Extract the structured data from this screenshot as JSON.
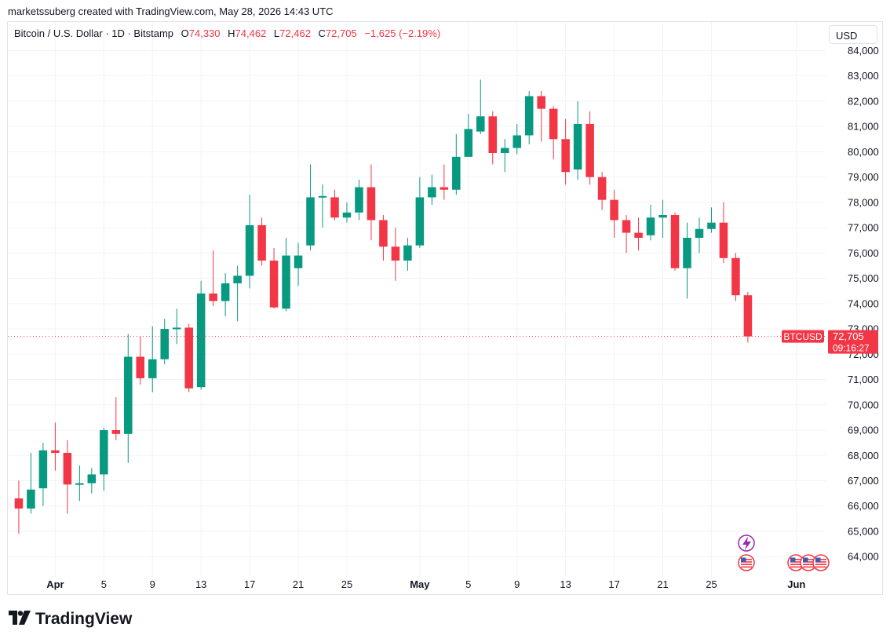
{
  "attribution": "marketssuberg created with TradingView.com, May 28, 2026 14:43 UTC",
  "legend": {
    "symbol": "Bitcoin / U.S. Dollar · 1D · Bitstamp",
    "open_label": "O",
    "open": "74,330",
    "high_label": "H",
    "high": "74,462",
    "low_label": "L",
    "low": "72,462",
    "close_label": "C",
    "close": "72,705",
    "change": "−1,625 (−2.19%)"
  },
  "currency_button": "USD",
  "price_tag": {
    "label": "BTCUSD",
    "price": "72,705",
    "countdown": "09:16:27"
  },
  "logo": {
    "text": "TradingView"
  },
  "colors": {
    "up": "#089981",
    "down": "#f23645",
    "grid": "#f0f3fa"
  },
  "event_icons": [
    "lightning-event-icon",
    "us-flag-event-icon",
    "us-flag-event-icon",
    "us-flag-event-icon",
    "us-flag-event-icon"
  ],
  "chart_data": {
    "type": "candlestick",
    "title": "Bitcoin / U.S. Dollar · 1D · Bitstamp",
    "y_ticks": [
      64000,
      65000,
      66000,
      67000,
      68000,
      69000,
      70000,
      71000,
      72000,
      73000,
      74000,
      75000,
      76000,
      77000,
      78000,
      79000,
      80000,
      81000,
      82000,
      83000,
      84000
    ],
    "y_tick_labels": [
      "64,000",
      "65,000",
      "66,000",
      "67,000",
      "68,000",
      "69,000",
      "70,000",
      "71,000",
      "72,000",
      "73,000",
      "74,000",
      "75,000",
      "76,000",
      "77,000",
      "78,000",
      "79,000",
      "80,000",
      "81,000",
      "82,000",
      "83,000",
      "84,000"
    ],
    "ylim": [
      63200,
      84200
    ],
    "x_tick_labels": [
      {
        "day": 1,
        "label": "Apr"
      },
      {
        "day": 5,
        "label": "5"
      },
      {
        "day": 9,
        "label": "9"
      },
      {
        "day": 13,
        "label": "13"
      },
      {
        "day": 17,
        "label": "17"
      },
      {
        "day": 21,
        "label": "21"
      },
      {
        "day": 25,
        "label": "25"
      },
      {
        "day": 31,
        "label": "May"
      },
      {
        "day": 35,
        "label": "5"
      },
      {
        "day": 39,
        "label": "9"
      },
      {
        "day": 43,
        "label": "13"
      },
      {
        "day": 47,
        "label": "17"
      },
      {
        "day": 51,
        "label": "21"
      },
      {
        "day": 55,
        "label": "25"
      },
      {
        "day": 62,
        "label": "Jun"
      }
    ],
    "xlim": [
      -2.9,
      64.4
    ],
    "last_price": 72705,
    "candles": [
      {
        "day": -2,
        "o": 66300,
        "h": 67000,
        "l": 64900,
        "c": 65900
      },
      {
        "day": -1,
        "o": 65900,
        "h": 68100,
        "l": 65700,
        "c": 66650
      },
      {
        "day": 0,
        "o": 66700,
        "h": 68500,
        "l": 66000,
        "c": 68200
      },
      {
        "day": 1,
        "o": 68200,
        "h": 69300,
        "l": 67400,
        "c": 68100
      },
      {
        "day": 2,
        "o": 68100,
        "h": 68600,
        "l": 65700,
        "c": 66850
      },
      {
        "day": 3,
        "o": 66850,
        "h": 67600,
        "l": 66200,
        "c": 66900
      },
      {
        "day": 4,
        "o": 66900,
        "h": 67500,
        "l": 66500,
        "c": 67250
      },
      {
        "day": 5,
        "o": 67250,
        "h": 69100,
        "l": 66600,
        "c": 69000
      },
      {
        "day": 6,
        "o": 69000,
        "h": 70300,
        "l": 68600,
        "c": 68850
      },
      {
        "day": 7,
        "o": 68850,
        "h": 72800,
        "l": 67700,
        "c": 71900
      },
      {
        "day": 8,
        "o": 71900,
        "h": 72700,
        "l": 70800,
        "c": 71050
      },
      {
        "day": 9,
        "o": 71050,
        "h": 73100,
        "l": 70500,
        "c": 71800
      },
      {
        "day": 10,
        "o": 71800,
        "h": 73400,
        "l": 71600,
        "c": 73000
      },
      {
        "day": 11,
        "o": 73000,
        "h": 73800,
        "l": 72400,
        "c": 73050
      },
      {
        "day": 12,
        "o": 73050,
        "h": 73200,
        "l": 70500,
        "c": 70650
      },
      {
        "day": 13,
        "o": 70700,
        "h": 74900,
        "l": 70600,
        "c": 74400
      },
      {
        "day": 14,
        "o": 74400,
        "h": 76100,
        "l": 73900,
        "c": 74100
      },
      {
        "day": 15,
        "o": 74100,
        "h": 75200,
        "l": 73500,
        "c": 74800
      },
      {
        "day": 16,
        "o": 74800,
        "h": 75500,
        "l": 73300,
        "c": 75100
      },
      {
        "day": 17,
        "o": 75100,
        "h": 78300,
        "l": 74600,
        "c": 77100
      },
      {
        "day": 18,
        "o": 77100,
        "h": 77400,
        "l": 75500,
        "c": 75700
      },
      {
        "day": 19,
        "o": 75700,
        "h": 76200,
        "l": 73800,
        "c": 73850
      },
      {
        "day": 20,
        "o": 73800,
        "h": 76600,
        "l": 73700,
        "c": 75900
      },
      {
        "day": 21,
        "o": 75400,
        "h": 76400,
        "l": 74700,
        "c": 75900
      },
      {
        "day": 22,
        "o": 76300,
        "h": 79500,
        "l": 76100,
        "c": 78200
      },
      {
        "day": 23,
        "o": 78200,
        "h": 78700,
        "l": 77000,
        "c": 78250
      },
      {
        "day": 24,
        "o": 78200,
        "h": 78500,
        "l": 77300,
        "c": 77400
      },
      {
        "day": 25,
        "o": 77400,
        "h": 78000,
        "l": 77200,
        "c": 77600
      },
      {
        "day": 26,
        "o": 77600,
        "h": 78900,
        "l": 77300,
        "c": 78600
      },
      {
        "day": 27,
        "o": 78600,
        "h": 79500,
        "l": 76500,
        "c": 77300
      },
      {
        "day": 28,
        "o": 77300,
        "h": 77500,
        "l": 75700,
        "c": 76250
      },
      {
        "day": 29,
        "o": 76250,
        "h": 77000,
        "l": 74900,
        "c": 75700
      },
      {
        "day": 30,
        "o": 75700,
        "h": 76600,
        "l": 75300,
        "c": 76300
      },
      {
        "day": 31,
        "o": 76300,
        "h": 79000,
        "l": 76200,
        "c": 78200
      },
      {
        "day": 32,
        "o": 78200,
        "h": 79100,
        "l": 77900,
        "c": 78600
      },
      {
        "day": 33,
        "o": 78600,
        "h": 79500,
        "l": 78100,
        "c": 78500
      },
      {
        "day": 34,
        "o": 78500,
        "h": 80700,
        "l": 78300,
        "c": 79800
      },
      {
        "day": 35,
        "o": 79800,
        "h": 81500,
        "l": 79800,
        "c": 80900
      },
      {
        "day": 36,
        "o": 80800,
        "h": 82850,
        "l": 80700,
        "c": 81400
      },
      {
        "day": 37,
        "o": 81400,
        "h": 81600,
        "l": 79500,
        "c": 79950
      },
      {
        "day": 38,
        "o": 79950,
        "h": 80500,
        "l": 79200,
        "c": 80150
      },
      {
        "day": 39,
        "o": 80150,
        "h": 81100,
        "l": 79900,
        "c": 80650
      },
      {
        "day": 40,
        "o": 80650,
        "h": 82400,
        "l": 80300,
        "c": 82200
      },
      {
        "day": 41,
        "o": 82200,
        "h": 82400,
        "l": 80400,
        "c": 81700
      },
      {
        "day": 42,
        "o": 81700,
        "h": 81800,
        "l": 79700,
        "c": 80500
      },
      {
        "day": 43,
        "o": 80500,
        "h": 81300,
        "l": 78700,
        "c": 79200
      },
      {
        "day": 44,
        "o": 79300,
        "h": 82000,
        "l": 78900,
        "c": 81100
      },
      {
        "day": 45,
        "o": 81100,
        "h": 81600,
        "l": 78700,
        "c": 79000
      },
      {
        "day": 46,
        "o": 79000,
        "h": 79200,
        "l": 77700,
        "c": 78100
      },
      {
        "day": 47,
        "o": 78100,
        "h": 78500,
        "l": 76600,
        "c": 77300
      },
      {
        "day": 48,
        "o": 77300,
        "h": 77500,
        "l": 76000,
        "c": 76800
      },
      {
        "day": 49,
        "o": 76800,
        "h": 77400,
        "l": 76100,
        "c": 76600
      },
      {
        "day": 50,
        "o": 76700,
        "h": 77900,
        "l": 76500,
        "c": 77400
      },
      {
        "day": 51,
        "o": 77400,
        "h": 78100,
        "l": 76600,
        "c": 77500
      },
      {
        "day": 52,
        "o": 77500,
        "h": 77600,
        "l": 75300,
        "c": 75400
      },
      {
        "day": 53,
        "o": 75400,
        "h": 77200,
        "l": 74200,
        "c": 76600
      },
      {
        "day": 54,
        "o": 76600,
        "h": 77400,
        "l": 76000,
        "c": 76950
      },
      {
        "day": 55,
        "o": 76950,
        "h": 77800,
        "l": 76800,
        "c": 77200
      },
      {
        "day": 56,
        "o": 77200,
        "h": 78000,
        "l": 75600,
        "c": 75800
      },
      {
        "day": 57,
        "o": 75800,
        "h": 76000,
        "l": 74100,
        "c": 74330
      },
      {
        "day": 58,
        "o": 74330,
        "h": 74462,
        "l": 72462,
        "c": 72705
      }
    ]
  }
}
